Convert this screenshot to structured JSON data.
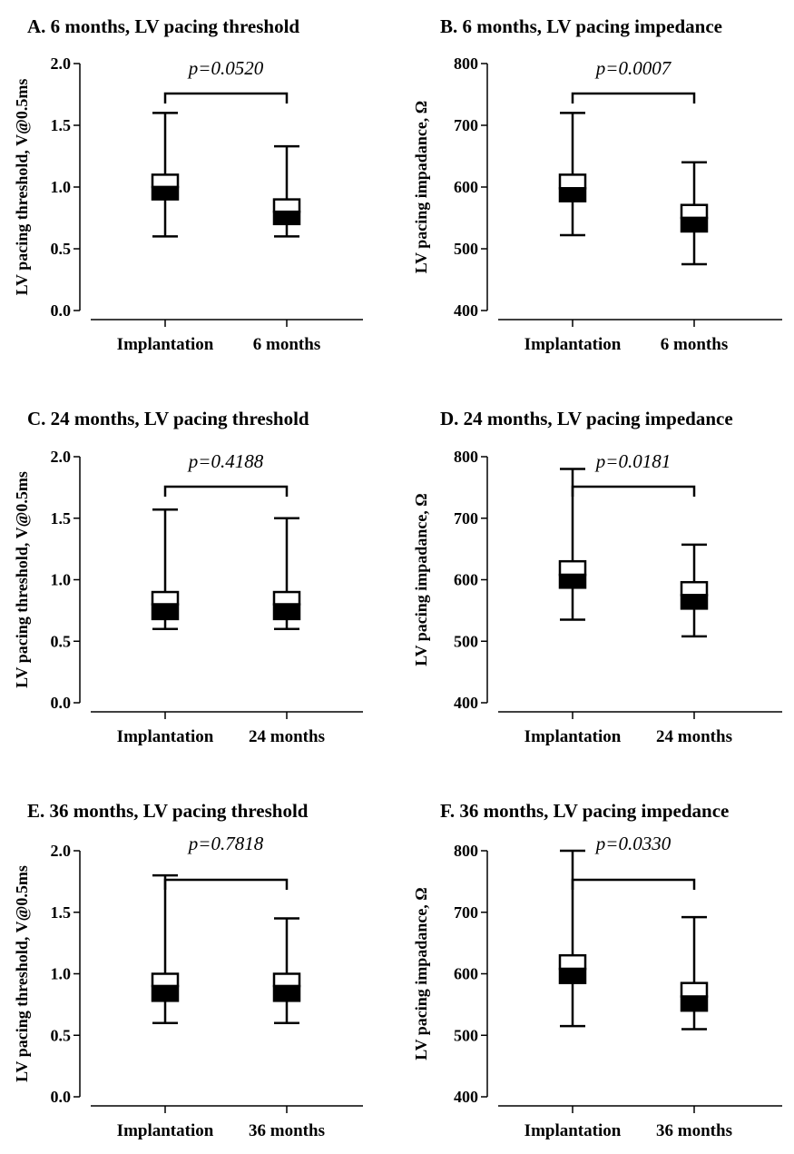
{
  "chart_data": [
    {
      "type": "boxplot",
      "title": "A. 6 months, LV pacing threshold",
      "ylabel": "LV pacing threshold, V@0.5ms",
      "ylim": [
        0,
        2
      ],
      "yticks": [
        "0.0",
        "0.5",
        "1.0",
        "1.5",
        "2.0"
      ],
      "categories": [
        "Implantation",
        "6 months"
      ],
      "boxes": [
        {
          "min": 0.6,
          "q1": 0.9,
          "median": 1.0,
          "q3": 1.1,
          "max": 1.6
        },
        {
          "min": 0.6,
          "q1": 0.7,
          "median": 0.8,
          "q3": 0.9,
          "max": 1.33
        }
      ],
      "p_value": "p=0.0520"
    },
    {
      "type": "boxplot",
      "title": "B. 6 months, LV pacing impedance",
      "ylabel": "LV pacing impadance, Ω",
      "ylim": [
        400,
        800
      ],
      "yticks": [
        "400",
        "500",
        "600",
        "700",
        "800"
      ],
      "categories": [
        "Implantation",
        "6 months"
      ],
      "boxes": [
        {
          "min": 522,
          "q1": 577,
          "median": 598,
          "q3": 620,
          "max": 720
        },
        {
          "min": 475,
          "q1": 528,
          "median": 550,
          "q3": 571,
          "max": 640
        }
      ],
      "p_value": "p=0.0007"
    },
    {
      "type": "boxplot",
      "title": "C. 24 months, LV pacing threshold",
      "ylabel": "LV pacing threshold, V@0.5ms",
      "ylim": [
        0,
        2
      ],
      "yticks": [
        "0.0",
        "0.5",
        "1.0",
        "1.5",
        "2.0"
      ],
      "categories": [
        "Implantation",
        "24 months"
      ],
      "boxes": [
        {
          "min": 0.6,
          "q1": 0.68,
          "median": 0.8,
          "q3": 0.9,
          "max": 1.57
        },
        {
          "min": 0.6,
          "q1": 0.68,
          "median": 0.8,
          "q3": 0.9,
          "max": 1.5
        }
      ],
      "p_value": "p=0.4188"
    },
    {
      "type": "boxplot",
      "title": "D. 24 months, LV pacing impedance",
      "ylabel": "LV pacing impadance, Ω",
      "ylim": [
        400,
        800
      ],
      "yticks": [
        "400",
        "500",
        "600",
        "700",
        "800"
      ],
      "categories": [
        "Implantation",
        "24 months"
      ],
      "boxes": [
        {
          "min": 535,
          "q1": 587,
          "median": 608,
          "q3": 630,
          "max": 780
        },
        {
          "min": 508,
          "q1": 553,
          "median": 575,
          "q3": 596,
          "max": 657
        }
      ],
      "p_value": "p=0.0181"
    },
    {
      "type": "boxplot",
      "title": "E. 36 months, LV pacing threshold",
      "ylabel": "LV pacing threshold, V@0.5ms",
      "ylim": [
        0,
        2
      ],
      "yticks": [
        "0.0",
        "0.5",
        "1.0",
        "1.5",
        "2.0"
      ],
      "categories": [
        "Implantation",
        "36 months"
      ],
      "boxes": [
        {
          "min": 0.6,
          "q1": 0.78,
          "median": 0.9,
          "q3": 1.0,
          "max": 1.8
        },
        {
          "min": 0.6,
          "q1": 0.78,
          "median": 0.9,
          "q3": 1.0,
          "max": 1.45
        }
      ],
      "p_value": "p=0.7818"
    },
    {
      "type": "boxplot",
      "title": "F. 36 months, LV pacing impedance",
      "ylabel": "LV pacing impadance, Ω",
      "ylim": [
        400,
        800
      ],
      "yticks": [
        "400",
        "500",
        "600",
        "700",
        "800"
      ],
      "categories": [
        "Implantation",
        "36 months"
      ],
      "boxes": [
        {
          "min": 515,
          "q1": 585,
          "median": 608,
          "q3": 630,
          "max": 800
        },
        {
          "min": 510,
          "q1": 540,
          "median": 563,
          "q3": 585,
          "max": 692
        }
      ],
      "p_value": "p=0.0330"
    }
  ]
}
